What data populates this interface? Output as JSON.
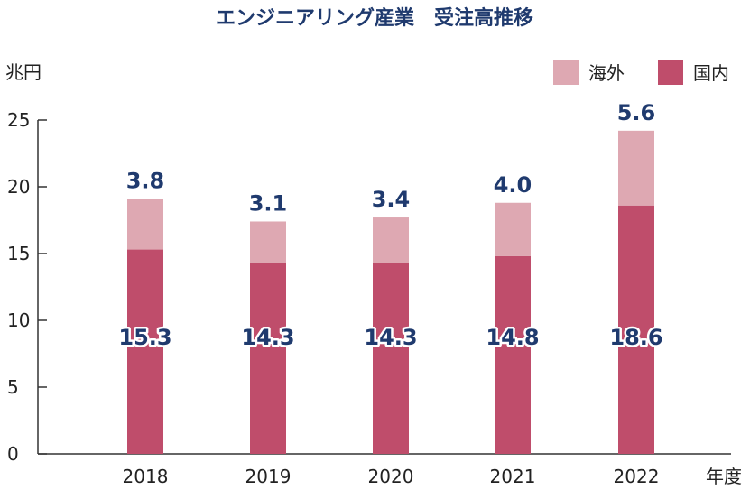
{
  "chart_data": {
    "type": "bar",
    "stacked": true,
    "title": "エンジニアリング産業　受注高推移",
    "ylabel": "兆円",
    "xlabel": "年度",
    "ylim": [
      0,
      25
    ],
    "yticks": [
      0,
      5,
      10,
      15,
      20,
      25
    ],
    "categories": [
      "2018",
      "2019",
      "2020",
      "2021",
      "2022"
    ],
    "series": [
      {
        "name": "国内",
        "values": [
          15.3,
          14.3,
          14.3,
          14.8,
          18.6
        ],
        "color": "#bf4d6b"
      },
      {
        "name": "海外",
        "values": [
          3.8,
          3.1,
          3.4,
          4.0,
          5.6
        ],
        "color": "#dea8b2"
      }
    ],
    "domestic_labels": [
      "15.3",
      "14.3",
      "14.3",
      "14.8",
      "18.6"
    ],
    "overseas_labels": [
      "3.8",
      "3.1",
      "3.4",
      "4.0",
      "5.6"
    ],
    "legend": {
      "position": "top-right",
      "order": [
        "海外",
        "国内"
      ]
    },
    "grid": false,
    "label_color": "#1f3a6e"
  }
}
